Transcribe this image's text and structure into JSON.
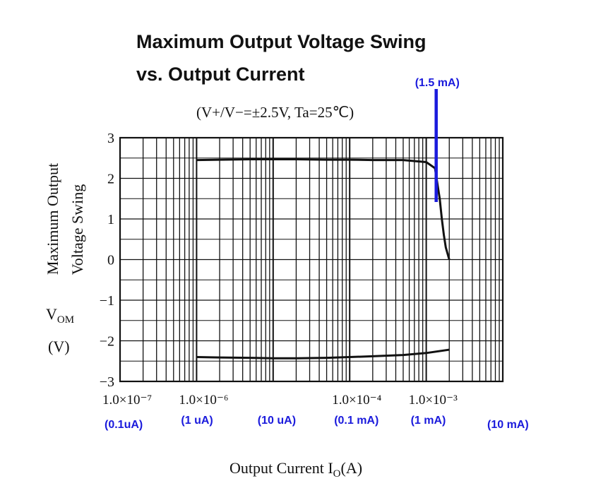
{
  "chart_data": {
    "type": "line",
    "title_line1": "Maximum Output Voltage Swing",
    "title_line2": "vs. Output Current",
    "subtitle": "(V+/V−=±2.5V, Ta=25℃)",
    "ylabel_line1": "Maximum Output",
    "ylabel_line2": "Voltage Swing",
    "ylabel_symbol": "VOM",
    "ylabel_unit": "(V)",
    "xlabel": "Output Current IO(A)",
    "x_scale": "log",
    "xlim": [
      1e-07,
      0.01
    ],
    "ylim": [
      -3,
      3
    ],
    "y_ticks": [
      3,
      2,
      1,
      0,
      -1,
      -2,
      -3
    ],
    "y_tick_labels": [
      "3",
      "2",
      "1",
      "0",
      "−1",
      "−2",
      "−3"
    ],
    "x_tick_labels": [
      {
        "x": 1e-07,
        "label": "1.0×10⁻⁷"
      },
      {
        "x": 1e-06,
        "label": "1.0×10⁻⁶"
      },
      {
        "x": 0.0001,
        "label": "1.0×10⁻⁴"
      },
      {
        "x": 0.001,
        "label": "1.0×10⁻³"
      }
    ],
    "x_annotations": [
      {
        "x": 1e-07,
        "label": "(0.1uA)"
      },
      {
        "x": 1e-06,
        "label": "(1 uA)"
      },
      {
        "x": 1e-05,
        "label": "(10 uA)"
      },
      {
        "x": 0.0001,
        "label": "(0.1 mA)"
      },
      {
        "x": 0.001,
        "label": "(1 mA)"
      },
      {
        "x": 0.01,
        "label": "(10 mA)"
      }
    ],
    "marker": {
      "x": 0.0015,
      "label": "(1.5 mA)",
      "color": "#1a1adc"
    },
    "grid": true,
    "series": [
      {
        "x": [
          1e-06,
          2e-06,
          5e-06,
          1e-05,
          2e-05,
          5e-05,
          0.0001,
          0.0002,
          0.0005,
          0.001,
          0.0013,
          0.0015,
          0.0016,
          0.0017,
          0.0018,
          0.002
        ],
        "values": [
          2.45,
          2.46,
          2.47,
          2.47,
          2.47,
          2.46,
          2.46,
          2.45,
          2.45,
          2.4,
          2.25,
          1.5,
          1.0,
          0.6,
          0.3,
          0.0
        ]
      },
      {
        "x": [
          1e-06,
          2e-06,
          5e-06,
          1e-05,
          2e-05,
          5e-05,
          0.0001,
          0.0002,
          0.0005,
          0.001,
          0.002
        ],
        "values": [
          -2.4,
          -2.41,
          -2.42,
          -2.43,
          -2.43,
          -2.42,
          -2.4,
          -2.38,
          -2.35,
          -2.3,
          -2.22
        ]
      }
    ]
  }
}
